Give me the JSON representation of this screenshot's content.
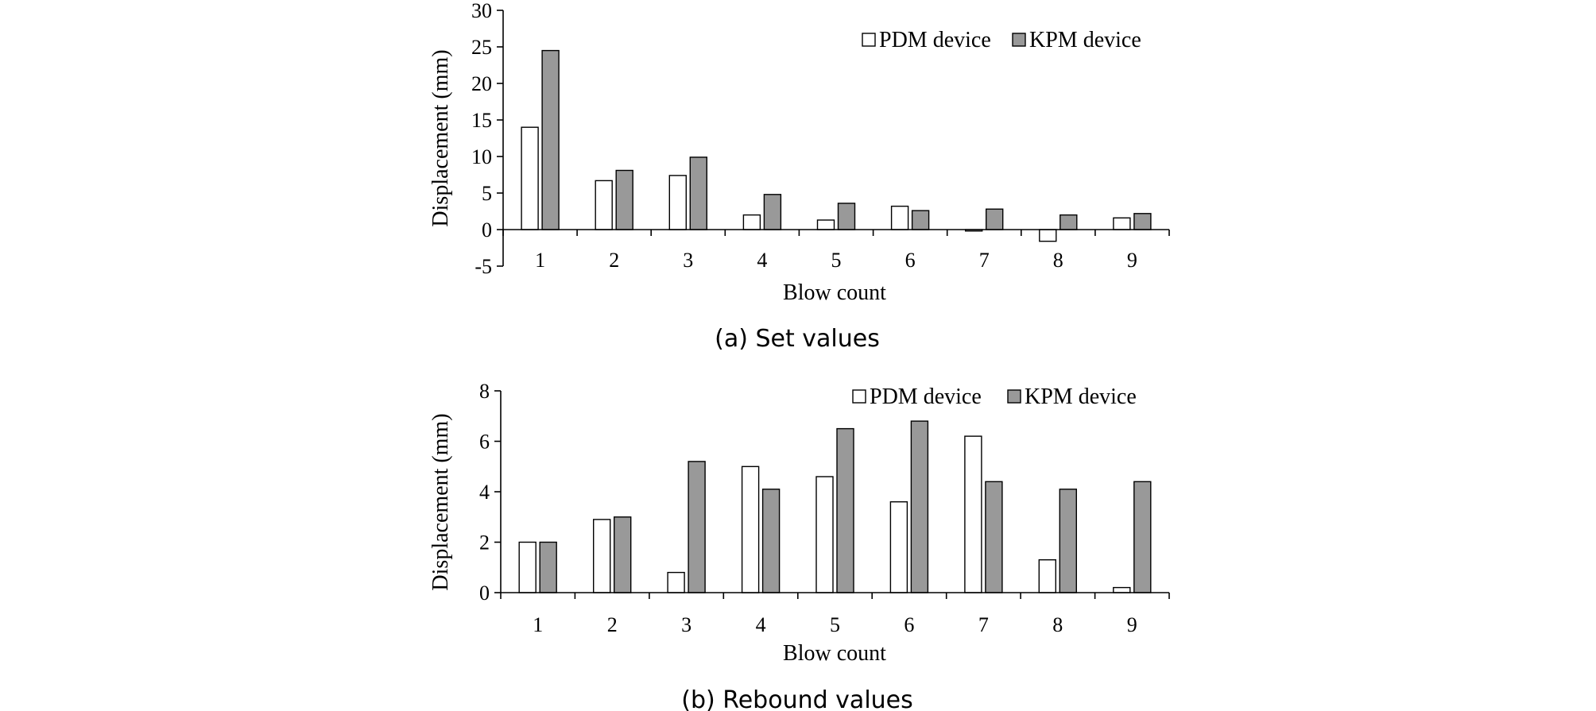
{
  "chart_data": [
    {
      "type": "bar",
      "caption": "(a) Set values",
      "xlabel": "Blow count",
      "ylabel": "Displacement (mm)",
      "categories": [
        "1",
        "2",
        "3",
        "4",
        "5",
        "6",
        "7",
        "8",
        "9"
      ],
      "ylim": [
        -5,
        30
      ],
      "yticks": [
        -5,
        0,
        5,
        10,
        15,
        20,
        25,
        30
      ],
      "grid": false,
      "legend_position": "top-right",
      "series": [
        {
          "name": "PDM device",
          "color": "#ffffff",
          "values": [
            14,
            6.7,
            7.4,
            2.0,
            1.3,
            3.2,
            -0.2,
            -1.6,
            1.6
          ]
        },
        {
          "name": "KPM device",
          "color": "#999999",
          "values": [
            24.5,
            8.1,
            9.9,
            4.8,
            3.6,
            2.6,
            2.8,
            2.0,
            2.2
          ]
        }
      ]
    },
    {
      "type": "bar",
      "caption": "(b) Rebound values",
      "xlabel": "Blow count",
      "ylabel": "Displacement (mm)",
      "categories": [
        "1",
        "2",
        "3",
        "4",
        "5",
        "6",
        "7",
        "8",
        "9"
      ],
      "ylim": [
        0,
        8
      ],
      "yticks": [
        0,
        2,
        4,
        6,
        8
      ],
      "grid": false,
      "legend_position": "top-right",
      "series": [
        {
          "name": "PDM device",
          "color": "#ffffff",
          "values": [
            2.0,
            2.9,
            0.8,
            5.0,
            4.6,
            3.6,
            6.2,
            1.3,
            0.2
          ]
        },
        {
          "name": "KPM device",
          "color": "#999999",
          "values": [
            2.0,
            3.0,
            5.2,
            4.1,
            6.5,
            6.8,
            4.4,
            4.1,
            4.4
          ]
        }
      ]
    }
  ]
}
